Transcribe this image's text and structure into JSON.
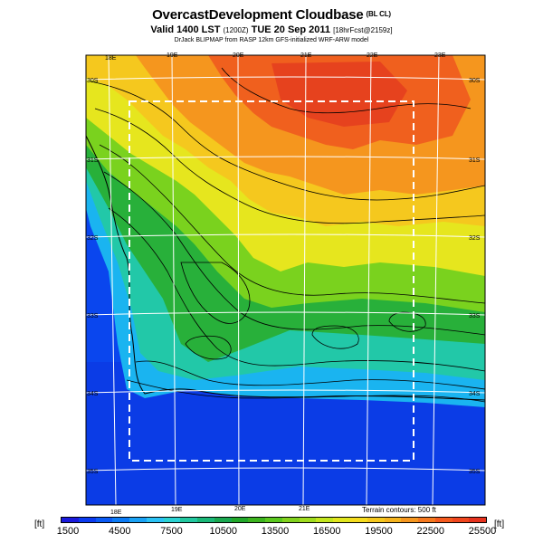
{
  "header": {
    "title": "OvercastDevelopment Cloudbase",
    "title_tag": "(BL CL)",
    "subtitle_main": "Valid 1400 LST",
    "subtitle_code": "(1200Z)",
    "subtitle_date": "TUE 20 Sep 2011",
    "subtitle_fcst": "[18hrFcst@2159z]",
    "credit": "DrJack BLIPMAP from RASP 12km GFS-initialized WRF-ARW model"
  },
  "map": {
    "lon_labels_top": [
      "18E",
      "19E",
      "20E",
      "21E",
      "22E",
      "23E"
    ],
    "lon_labels_bottom": [
      "18E",
      "19E",
      "20E",
      "21E"
    ],
    "lat_labels_left": [
      "30S",
      "31S",
      "32S",
      "33S",
      "34S",
      "35S"
    ],
    "lat_labels_right": [
      "30S",
      "31S",
      "32S",
      "33S",
      "34S",
      "35S"
    ],
    "contour_note": "Terrain contours: 500 ft"
  },
  "legend": {
    "unit_left": "[ft]",
    "unit_right": "[ft]",
    "tick_labels": [
      "1500",
      "4500",
      "7500",
      "10500",
      "13500",
      "16500",
      "19500",
      "22500",
      "25500"
    ],
    "colors": [
      "#1a1adc",
      "#0a3af0",
      "#0a5af5",
      "#0a7af5",
      "#1aa2f5",
      "#2ac2f5",
      "#2ad2d2",
      "#22c8a0",
      "#1ab878",
      "#1aa850",
      "#22a82a",
      "#3cb41e",
      "#5ac81e",
      "#82d21e",
      "#a0dc1e",
      "#c3e61e",
      "#e1e61e",
      "#f5dc1e",
      "#f5c81e",
      "#f5b41e",
      "#f5961e",
      "#f5781e",
      "#f55a1e",
      "#f0461e",
      "#e6321e"
    ]
  }
}
